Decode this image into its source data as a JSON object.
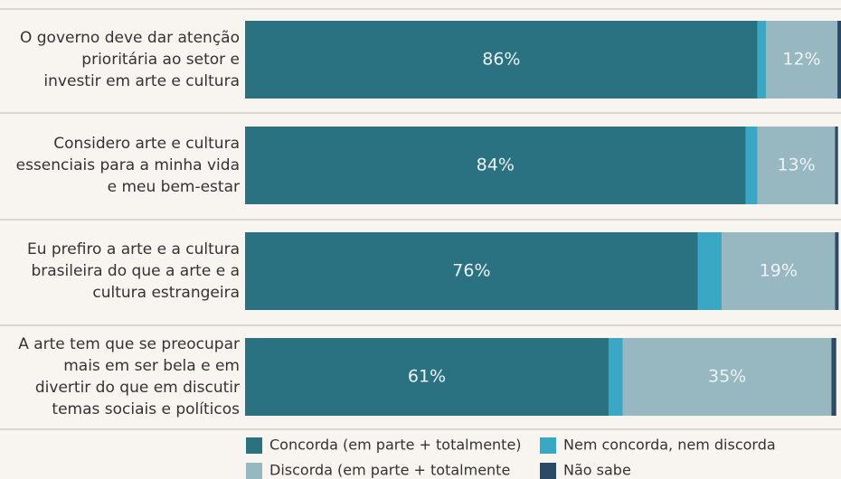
{
  "chart_data": {
    "type": "stacked-bar-horizontal",
    "categories": [
      [
        "O governo deve dar atenção",
        "prioritária ao setor e",
        "investir em arte e cultura"
      ],
      [
        "Considero arte e cultura",
        "essenciais para a minha vida",
        "e meu bem-estar"
      ],
      [
        "Eu prefiro a arte e a cultura",
        "brasileira do que a arte e a",
        "cultura estrangeira"
      ],
      [
        "A arte tem que se preocupar",
        "mais em ser bela e em",
        "divertir do que em discutir",
        "temas sociais e políticos"
      ]
    ],
    "xlim": [
      0,
      100
    ],
    "series": [
      {
        "name": "Concorda (em parte + totalmente)",
        "color": "#2a7181",
        "values": [
          86,
          84,
          76,
          61
        ],
        "value_labels": [
          "86%",
          "84%",
          "76%",
          "61%"
        ]
      },
      {
        "name": "Nem concorda, nem discorda",
        "color": "#3aa7c4",
        "values": [
          1.4,
          2,
          4,
          2.4
        ]
      },
      {
        "name": "Discorda (em parte + totalmente",
        "color": "#97b8c0",
        "values": [
          12,
          13,
          19,
          35
        ],
        "value_labels": [
          "12%",
          "13%",
          "19%",
          "35%"
        ]
      },
      {
        "name": "Não sabe",
        "color": "#2b4a63",
        "values": [
          0.6,
          0.5,
          0.6,
          0.8
        ]
      }
    ]
  }
}
